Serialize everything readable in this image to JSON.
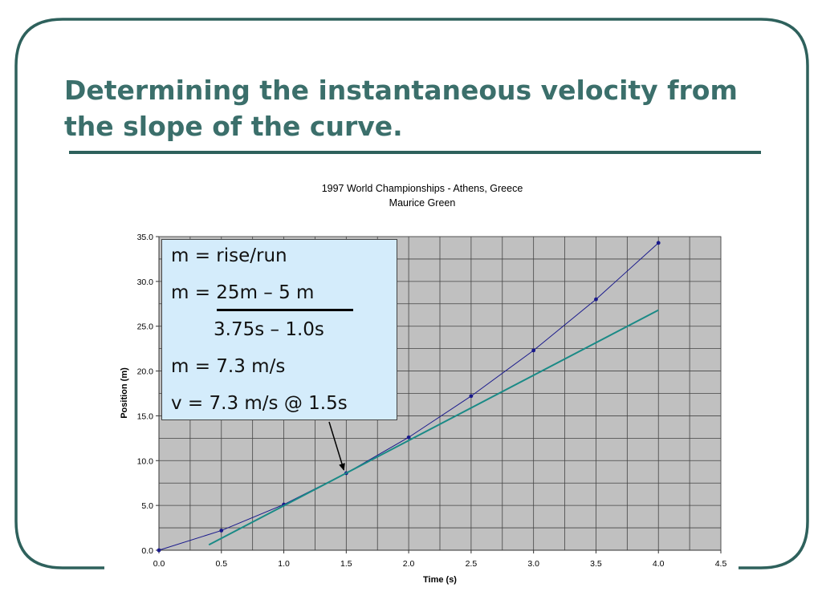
{
  "slide": {
    "title_line1": "Determining the instantaneous velocity from",
    "title_line2": "the slope of the curve.",
    "frame_color": "#2e615c",
    "title_color": "#3b6f6b"
  },
  "callout": {
    "line1": "m = rise/run",
    "line2": "m = 25m – 5 m",
    "line3": "3.75s – 1.0s",
    "line4": "m = 7.3 m/s",
    "line5": "v = 7.3 m/s @ 1.5s",
    "background": "#d4ecfb"
  },
  "chart_data": {
    "type": "line",
    "title": "1997 World Championships - Athens, Greece",
    "subtitle": "Maurice Green",
    "xlabel": "Time (s)",
    "ylabel": "Position (m)",
    "xlim": [
      0.0,
      4.5
    ],
    "ylim": [
      0.0,
      35.0
    ],
    "xticks": [
      "0.0",
      "0.5",
      "1.0",
      "1.5",
      "2.0",
      "2.5",
      "3.0",
      "3.5",
      "4.0",
      "4.5"
    ],
    "yticks": [
      "0.0",
      "5.0",
      "10.0",
      "15.0",
      "20.0",
      "25.0",
      "30.0",
      "35.0"
    ],
    "grid": true,
    "plot_background": "#c0c0c0",
    "series": [
      {
        "color": "#1a1a8c",
        "x": [
          0.0,
          0.5,
          1.0,
          1.5,
          2.0,
          2.5,
          3.0,
          3.5,
          4.0
        ],
        "y": [
          0.0,
          2.2,
          5.1,
          8.6,
          12.6,
          17.2,
          22.3,
          28.0,
          34.3
        ]
      },
      {
        "color": "#1a8a86",
        "x": [
          0.4,
          4.0
        ],
        "y": [
          0.6,
          26.8
        ]
      }
    ],
    "annotation_arrow": {
      "x": 1.5,
      "y": 8.6
    }
  }
}
